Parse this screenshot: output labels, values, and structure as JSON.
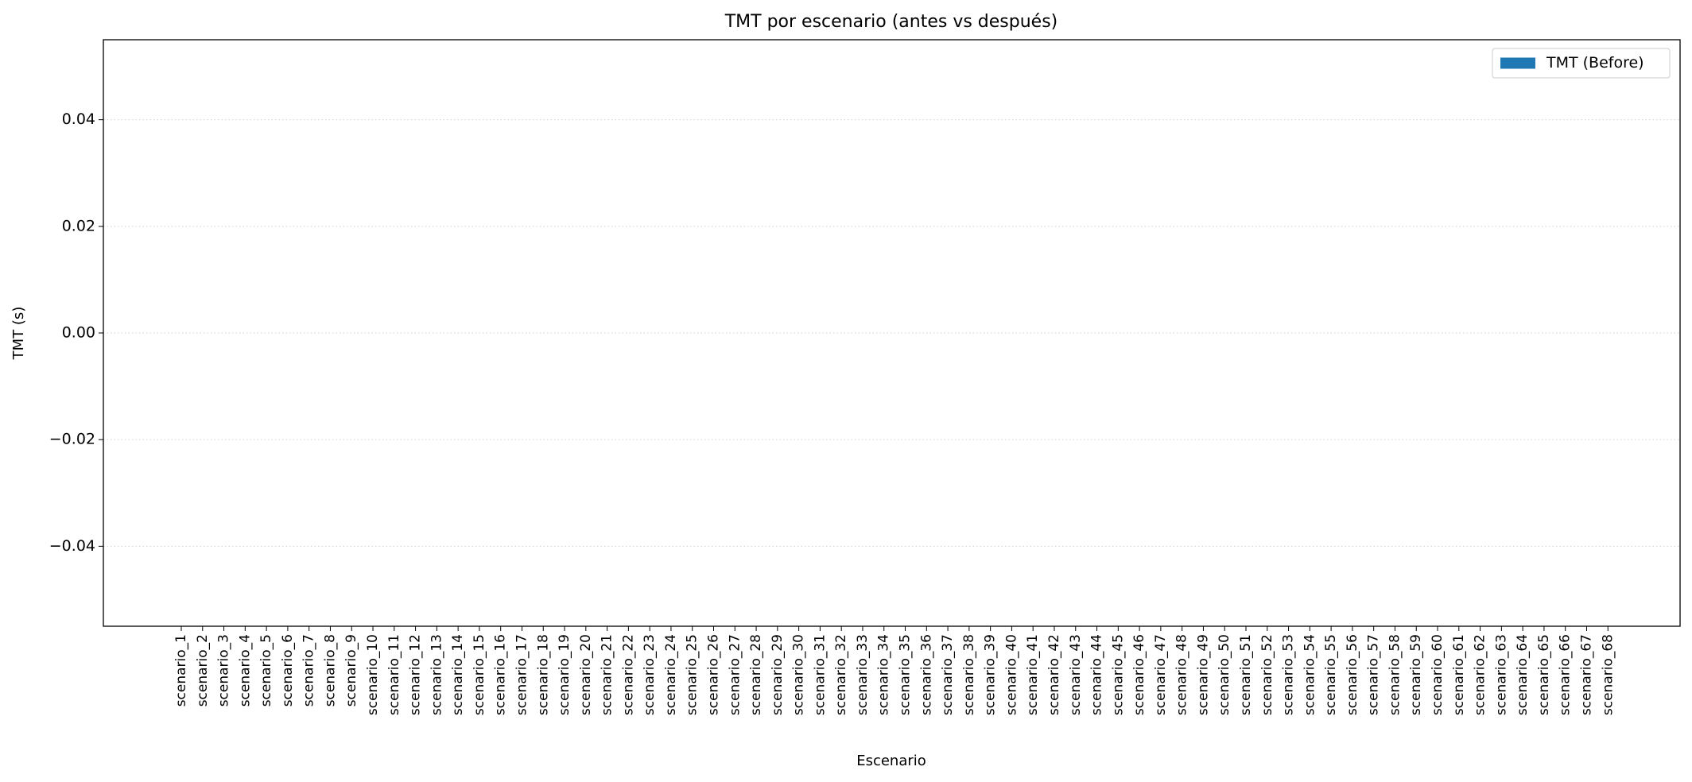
{
  "chart_data": {
    "type": "bar",
    "title": "TMT por escenario (antes vs después)",
    "xlabel": "Escenario",
    "ylabel": "TMT (s)",
    "categories": [
      "scenario_1",
      "scenario_2",
      "scenario_3",
      "scenario_4",
      "scenario_5",
      "scenario_6",
      "scenario_7",
      "scenario_8",
      "scenario_9",
      "scenario_10",
      "scenario_11",
      "scenario_12",
      "scenario_13",
      "scenario_14",
      "scenario_15",
      "scenario_16",
      "scenario_17",
      "scenario_18",
      "scenario_19",
      "scenario_20",
      "scenario_21",
      "scenario_22",
      "scenario_23",
      "scenario_24",
      "scenario_25",
      "scenario_26",
      "scenario_27",
      "scenario_28",
      "scenario_29",
      "scenario_30",
      "scenario_31",
      "scenario_32",
      "scenario_33",
      "scenario_34",
      "scenario_35",
      "scenario_36",
      "scenario_37",
      "scenario_38",
      "scenario_39",
      "scenario_40",
      "scenario_41",
      "scenario_42",
      "scenario_43",
      "scenario_44",
      "scenario_45",
      "scenario_46",
      "scenario_47",
      "scenario_48",
      "scenario_49",
      "scenario_50",
      "scenario_51",
      "scenario_52",
      "scenario_53",
      "scenario_54",
      "scenario_55",
      "scenario_56",
      "scenario_57",
      "scenario_58",
      "scenario_59",
      "scenario_60",
      "scenario_61",
      "scenario_62",
      "scenario_63",
      "scenario_64",
      "scenario_65",
      "scenario_66",
      "scenario_67",
      "scenario_68"
    ],
    "series": [
      {
        "name": "TMT (Before)",
        "color": "#1f77b4",
        "values": [
          0,
          0,
          0,
          0,
          0,
          0,
          0,
          0,
          0,
          0,
          0,
          0,
          0,
          0,
          0,
          0,
          0,
          0,
          0,
          0,
          0,
          0,
          0,
          0,
          0,
          0,
          0,
          0,
          0,
          0,
          0,
          0,
          0,
          0,
          0,
          0,
          0,
          0,
          0,
          0,
          0,
          0,
          0,
          0,
          0,
          0,
          0,
          0,
          0,
          0,
          0,
          0,
          0,
          0,
          0,
          0,
          0,
          0,
          0,
          0,
          0,
          0,
          0,
          0,
          0,
          0,
          0,
          0
        ]
      }
    ],
    "ylim": [
      -0.055,
      0.055
    ],
    "yticks": [
      {
        "value": -0.04,
        "label": "−0.04"
      },
      {
        "value": -0.02,
        "label": "−0.02"
      },
      {
        "value": 0,
        "label": "0.00"
      },
      0.02,
      0.04
    ],
    "grid": true,
    "legend": "upper right"
  }
}
